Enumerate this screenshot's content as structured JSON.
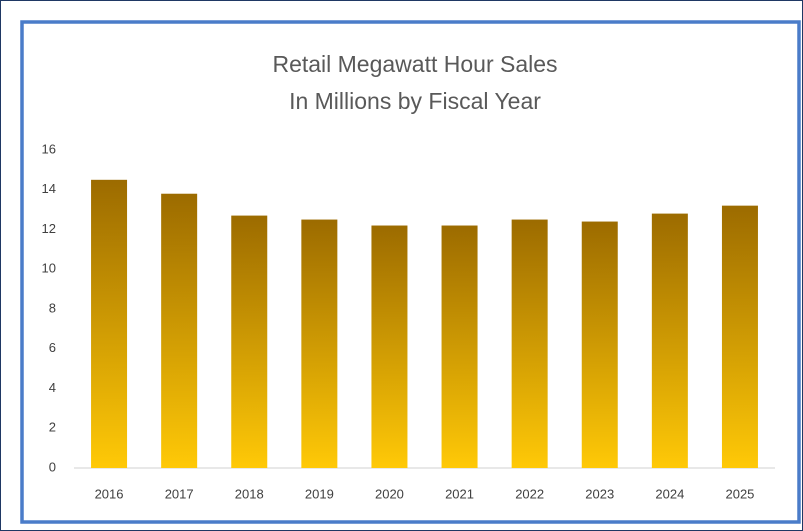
{
  "chart_data": {
    "type": "bar",
    "title": [
      "Retail Megawatt Hour Sales",
      "In Millions by Fiscal Year"
    ],
    "categories": [
      "2016",
      "2017",
      "2018",
      "2019",
      "2020",
      "2021",
      "2022",
      "2023",
      "2024",
      "2025"
    ],
    "values": [
      14.5,
      13.8,
      12.7,
      12.5,
      12.2,
      12.2,
      12.5,
      12.4,
      12.8,
      13.2
    ],
    "color": [
      "#9c6b00",
      "#ffc907"
    ],
    "ylim": [
      0,
      16
    ],
    "yticks": [
      0,
      2,
      4,
      6,
      8,
      10,
      12,
      14,
      16
    ],
    "grid": false
  }
}
